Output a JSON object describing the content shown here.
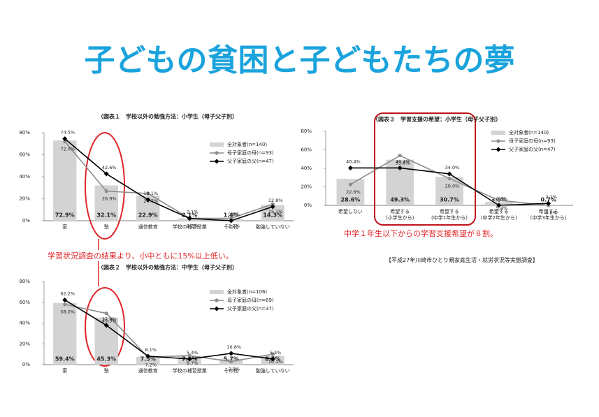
{
  "title": "子どもの貧困と子どもたちの夢",
  "note_1": "学習状況調査の結果より、小中ともに15%以上低い。",
  "note_2": "中学１年生以下からの学習支援希望が８割。",
  "source": "【平成27年川崎市ひとり親家庭生活・就労状況等実態調査】",
  "chart_data": [
    {
      "type": "combo",
      "title": "〈図表１　学校以外の勉強方法：小学生（母子父子別）",
      "categories": [
        "家",
        "塾",
        "通信教育",
        "学校の補習授業",
        "その他",
        "勉強していない"
      ],
      "ylim": [
        0,
        80
      ],
      "yticks": [
        {
          "value": 0,
          "label": "0%"
        },
        {
          "value": 20,
          "label": "20%"
        },
        {
          "value": 40,
          "label": "40%"
        },
        {
          "value": 60,
          "label": "60%"
        },
        {
          "value": 80,
          "label": "80%"
        }
      ],
      "series": [
        {
          "name": "全対象者(n=140)",
          "type": "bar",
          "color": "#d3d3d3",
          "values": [
            72.9,
            32.1,
            22.9,
            2.1,
            1.4,
            14.3
          ],
          "value_labels": [
            "72.9%",
            "32.1%",
            "22.9%",
            "2.1%",
            "1.4%",
            "14.3%"
          ]
        },
        {
          "name": "母子家庭の母(n=93)",
          "type": "line",
          "color": "#8c8c8c",
          "values": [
            72.0,
            26.9,
            24.7,
            2.2,
            2.2,
            15.1
          ],
          "value_labels": [
            "72.0%",
            "26.9%",
            "24.7%",
            "2.2%",
            "2.2%",
            "15.1%"
          ]
        },
        {
          "name": "父子家庭の父(n=47)",
          "type": "line",
          "color": "#000000",
          "values": [
            74.5,
            42.6,
            19.1,
            2.1,
            0.0,
            12.8
          ],
          "value_labels": [
            "74.5%",
            "42.6%",
            "19.1%",
            "2.1%",
            "0.0%",
            "12.8%"
          ]
        }
      ]
    },
    {
      "type": "combo",
      "title": "〈図表２　学校以外の勉強方法：中学生（母子父子別）",
      "categories": [
        "家",
        "塾",
        "通信教育",
        "学校の補習授業",
        "その他",
        "勉強していない"
      ],
      "ylim": [
        0,
        80
      ],
      "yticks": [
        {
          "value": 0,
          "label": "0%"
        },
        {
          "value": 20,
          "label": "20%"
        },
        {
          "value": 40,
          "label": "40%"
        },
        {
          "value": 60,
          "label": "60%"
        },
        {
          "value": 80,
          "label": "80%"
        }
      ],
      "series": [
        {
          "name": "全対象者(n=106)",
          "type": "bar",
          "color": "#d3d3d3",
          "values": [
            59.4,
            45.3,
            7.5,
            7.5,
            5.7,
            8.5
          ],
          "value_labels": [
            "59.4%",
            "45.3%",
            "7.5%",
            "7.5%",
            "5.7%",
            "8.5%"
          ]
        },
        {
          "name": "母子家庭の母(n=69)",
          "type": "line",
          "color": "#8c8c8c",
          "values": [
            58.0,
            49.3,
            7.2,
            8.7,
            2.9,
            10.1
          ],
          "value_labels": [
            "58.0%",
            "49.3%",
            "7.2%",
            "8.7%",
            "2.9%",
            "10.1%"
          ]
        },
        {
          "name": "父子家庭の父(n=37)",
          "type": "line",
          "color": "#000000",
          "values": [
            62.2,
            37.8,
            8.1,
            5.4,
            10.8,
            5.4
          ],
          "value_labels": [
            "62.2%",
            "37.8%",
            "8.1%",
            "5.4%",
            "10.8%",
            "5.4%"
          ]
        }
      ]
    },
    {
      "type": "combo",
      "title": "〈図表３　学習支援の希望：小学生（母子父子別）",
      "categories": [
        "希望しない",
        "希望する\n(小学生から)",
        "希望する\n(中学1年生から)",
        "希望する\n(中学2年生から)",
        "希望する\n(中学3年生から)"
      ],
      "ylim": [
        0,
        80
      ],
      "yticks": [
        {
          "value": 0,
          "label": "0%"
        },
        {
          "value": 20,
          "label": "20%"
        },
        {
          "value": 40,
          "label": "40%"
        },
        {
          "value": 60,
          "label": "60%"
        },
        {
          "value": 80,
          "label": "80%"
        }
      ],
      "series": [
        {
          "name": "全対象者(n=140)",
          "type": "bar",
          "color": "#d3d3d3",
          "values": [
            28.6,
            49.3,
            30.7,
            3.6,
            0.7
          ],
          "value_labels": [
            "28.6%",
            "49.3%",
            "30.7%",
            "3.6%",
            "0.7%"
          ]
        },
        {
          "name": "母子家庭の母(n=93)",
          "type": "line",
          "color": "#8c8c8c",
          "values": [
            22.6,
            53.8,
            29.0,
            5.4,
            0.0
          ],
          "value_labels": [
            "22.6%",
            "53.8%",
            "29.0%",
            "5.4%",
            "0.0%"
          ]
        },
        {
          "name": "父子家庭の父(n=47)",
          "type": "line",
          "color": "#000000",
          "values": [
            40.4,
            40.4,
            34.0,
            0.0,
            2.1
          ],
          "value_labels": [
            "40.4%",
            "40.4%",
            "34.0%",
            "0.0%",
            "2.1%"
          ]
        }
      ]
    }
  ]
}
